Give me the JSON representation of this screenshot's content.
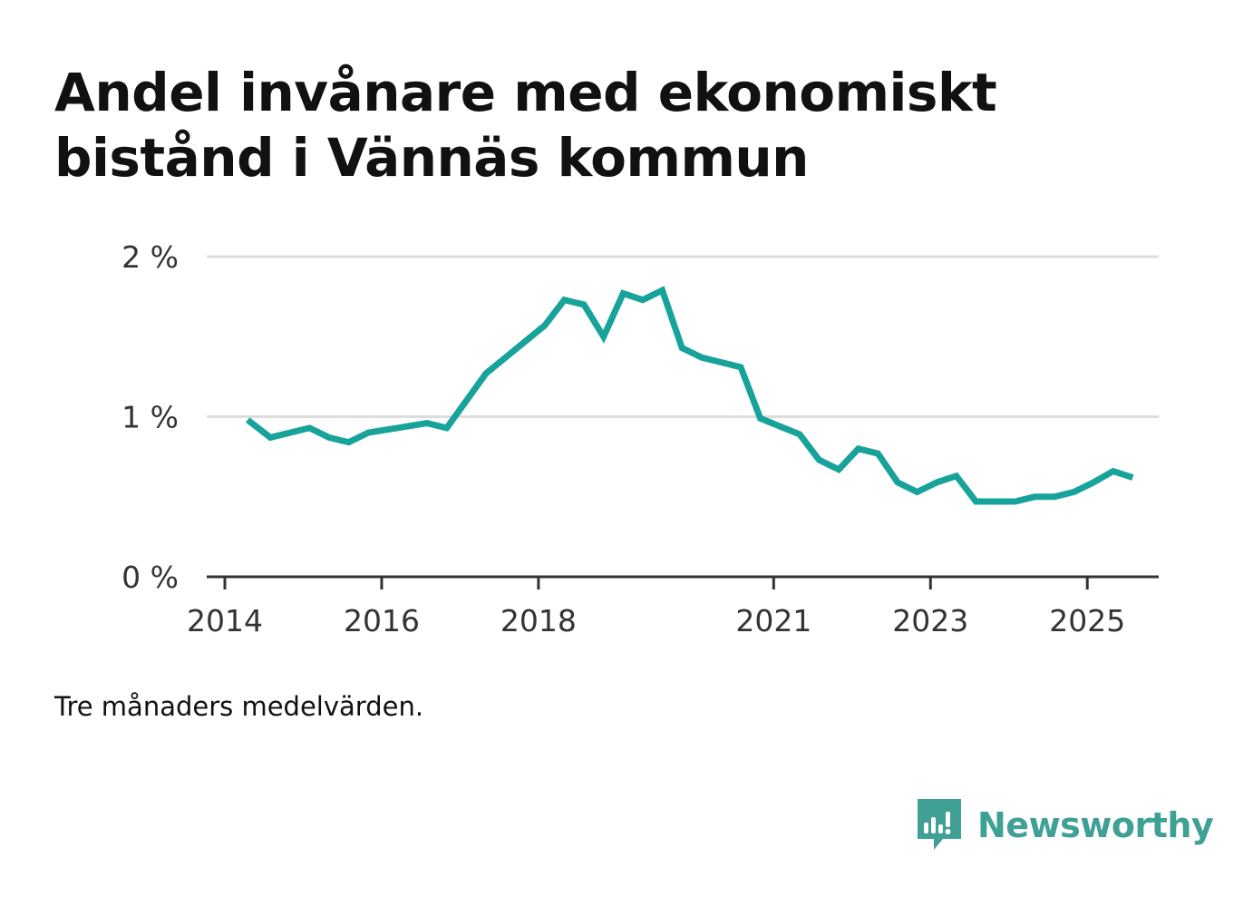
{
  "title": {
    "line1": "Andel invånare med ekonomiskt",
    "line2": "bistånd i Vännäs kommun"
  },
  "note": "Tre månaders medelvärden.",
  "brand": {
    "name": "Newsworthy",
    "icon": "newsworthy-logo-icon",
    "color": "#3fa095"
  },
  "colors": {
    "line": "#17a39a",
    "grid": "#dddddd",
    "axis": "#333333"
  },
  "chart_data": {
    "type": "line",
    "title": "Andel invånare med ekonomiskt bistånd i Vännäs kommun",
    "xlabel": "",
    "ylabel": "",
    "ylim": [
      0,
      2
    ],
    "y_ticks": [
      {
        "value": 0,
        "label": "0 %"
      },
      {
        "value": 1,
        "label": "1 %"
      },
      {
        "value": 2,
        "label": "2 %"
      }
    ],
    "xlim": [
      2014.0,
      2026.2
    ],
    "x_ticks": [
      {
        "value": 2014.0,
        "label": "2014"
      },
      {
        "value": 2016.0,
        "label": "2016"
      },
      {
        "value": 2018.0,
        "label": "2018"
      },
      {
        "value": 2021.0,
        "label": "2021"
      },
      {
        "value": 2023.0,
        "label": "2023"
      },
      {
        "value": 2025.0,
        "label": "2025"
      }
    ],
    "grid": true,
    "series": [
      {
        "name": "Andel invånare med ekonomiskt bistånd",
        "x": [
          2014.29,
          2014.58,
          2014.83,
          2015.08,
          2015.33,
          2015.58,
          2015.83,
          2016.08,
          2016.33,
          2016.58,
          2016.83,
          2017.08,
          2017.33,
          2017.58,
          2017.83,
          2018.08,
          2018.33,
          2018.58,
          2018.83,
          2019.08,
          2019.33,
          2019.58,
          2019.83,
          2020.08,
          2020.33,
          2020.58,
          2020.83,
          2021.08,
          2021.33,
          2021.58,
          2021.83,
          2022.08,
          2022.33,
          2022.58,
          2022.83,
          2023.08,
          2023.33,
          2023.58,
          2023.83,
          2024.08,
          2024.33,
          2024.58,
          2024.83,
          2025.08,
          2025.33,
          2025.58
        ],
        "values": [
          0.98,
          0.87,
          0.9,
          0.93,
          0.87,
          0.84,
          0.9,
          0.92,
          0.94,
          0.96,
          0.93,
          1.1,
          1.27,
          1.37,
          1.47,
          1.57,
          1.73,
          1.7,
          1.5,
          1.77,
          1.73,
          1.79,
          1.43,
          1.37,
          1.34,
          1.31,
          0.99,
          0.94,
          0.89,
          0.73,
          0.67,
          0.8,
          0.77,
          0.59,
          0.53,
          0.59,
          0.63,
          0.47,
          0.47,
          0.47,
          0.5,
          0.5,
          0.53,
          0.59,
          0.66,
          0.62
        ]
      }
    ]
  }
}
